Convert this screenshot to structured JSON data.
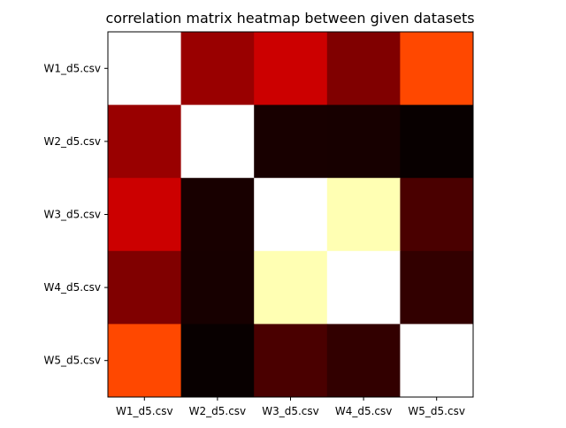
{
  "chart_data": {
    "type": "heatmap",
    "title": "correlation matrix heatmap between given datasets",
    "xlabel": "",
    "ylabel": "",
    "colormap": "hot",
    "x_categories": [
      "W1_d5.csv",
      "W2_d5.csv",
      "W3_d5.csv",
      "W4_d5.csv",
      "W5_d5.csv"
    ],
    "y_categories": [
      "W1_d5.csv",
      "W2_d5.csv",
      "W3_d5.csv",
      "W4_d5.csv",
      "W5_d5.csv"
    ],
    "cell_colors": [
      [
        "#ffffff",
        "#990000",
        "#cc0000",
        "#800000",
        "#ff4800"
      ],
      [
        "#990000",
        "#ffffff",
        "#180000",
        "#170000",
        "#080000"
      ],
      [
        "#cc0000",
        "#180000",
        "#ffffff",
        "#ffffb3",
        "#4a0000"
      ],
      [
        "#800000",
        "#170000",
        "#ffffb3",
        "#ffffff",
        "#320000"
      ],
      [
        "#ff4800",
        "#080000",
        "#4a0000",
        "#320000",
        "#ffffff"
      ]
    ],
    "grid": false,
    "legend": "none"
  }
}
